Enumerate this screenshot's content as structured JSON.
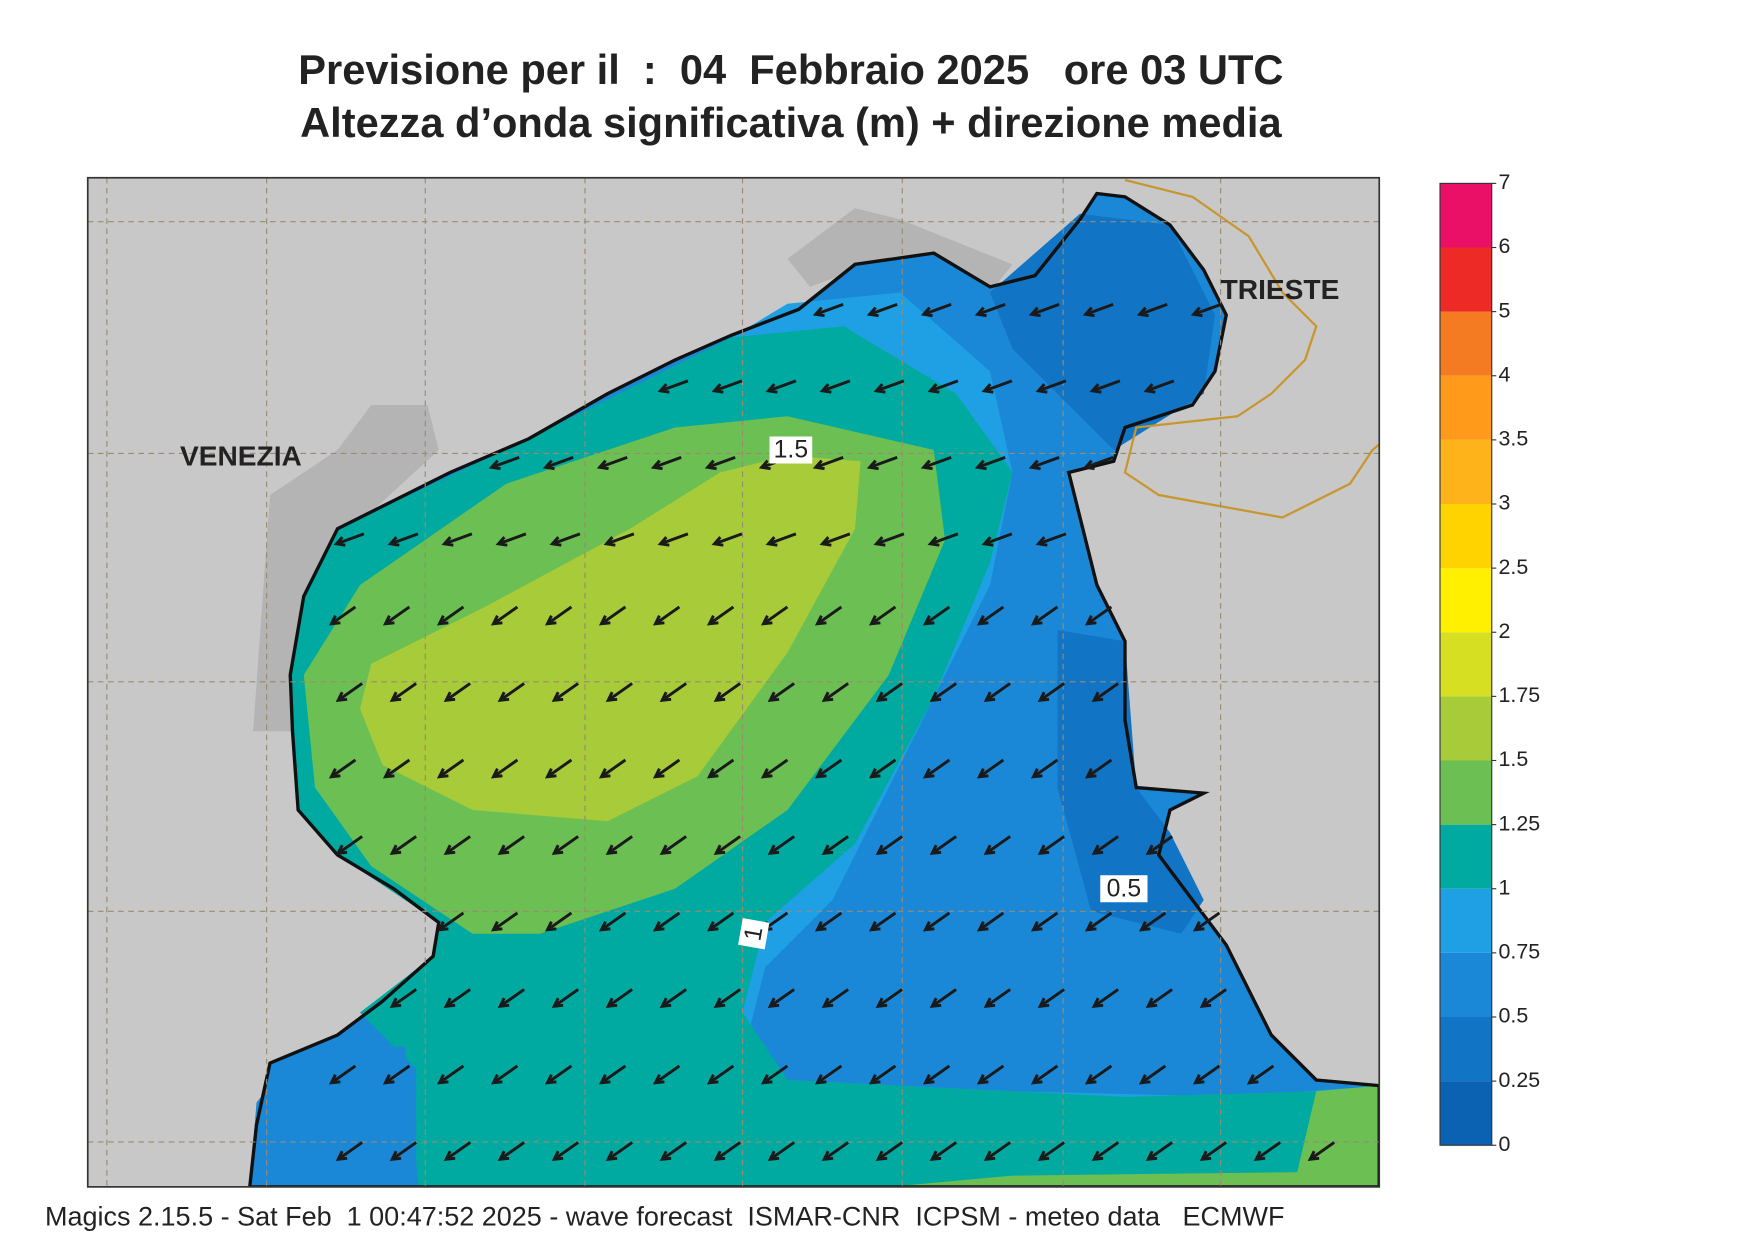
{
  "title": "Previsione per il  :  04  Febbraio 2025   ore 03 UTC",
  "subtitle": "Altezza d’onda significativa (m) + direzione media",
  "places": [
    "VENEZIA",
    "TRIESTE"
  ],
  "contour_labels": [
    1.5,
    1,
    0.5
  ],
  "colorbar": {
    "levels": [
      0,
      0.25,
      0.5,
      0.75,
      1,
      1.25,
      1.5,
      1.75,
      2,
      2.5,
      3,
      3.5,
      4,
      5,
      6,
      7
    ],
    "colors": [
      "#0b62b3",
      "#1174c4",
      "#1a88d6",
      "#20a0e4",
      "#00aaa0",
      "#6cbf52",
      "#a8cb3a",
      "#d6df22",
      "#fff000",
      "#ffd300",
      "#ffb31a",
      "#ff9a1a",
      "#f57b22",
      "#ee2a26",
      "#ea1068"
    ]
  },
  "footer": "Magics 2.15.5 - Sat Feb  1 00:47:52 2025 - wave forecast  ISMAR-CNR  ICPSM - meteo data   ECMWF"
}
